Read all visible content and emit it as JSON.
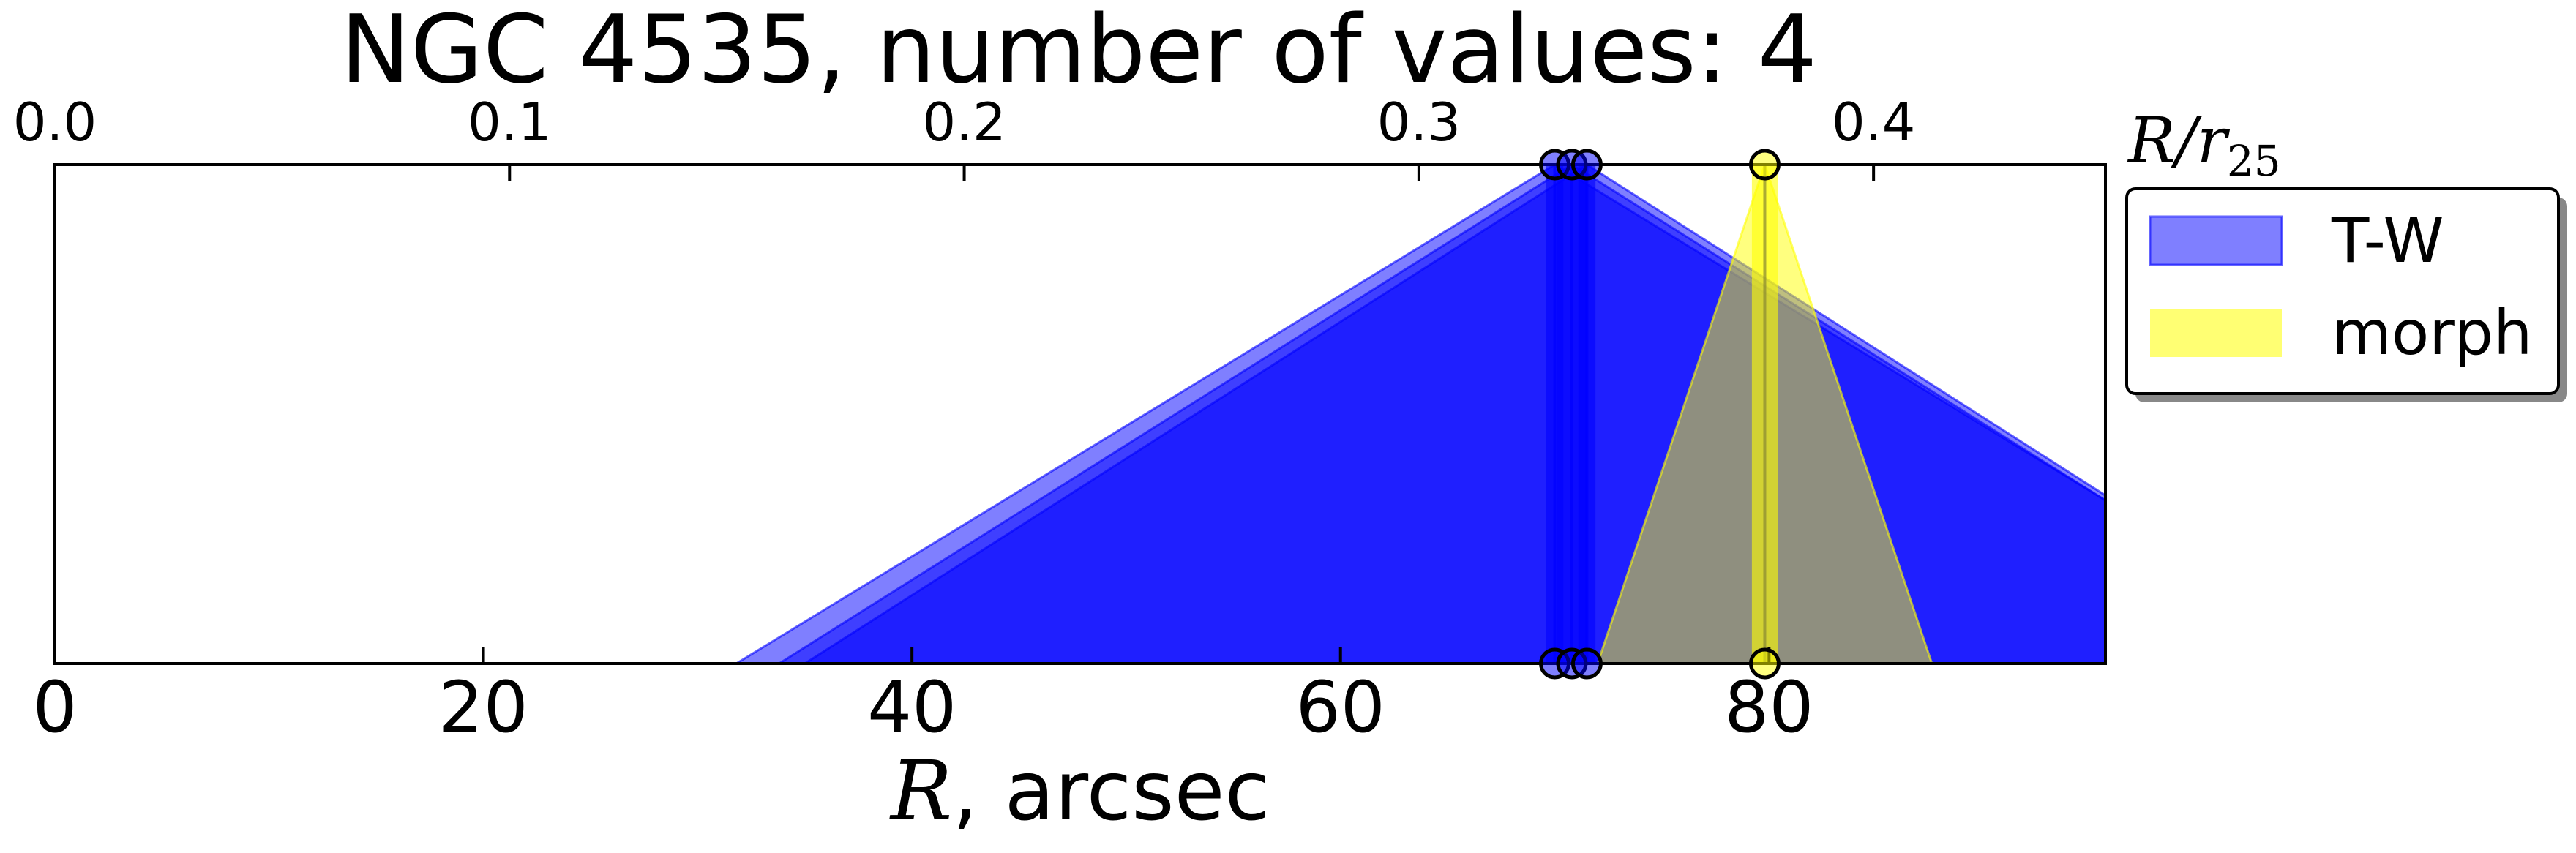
{
  "chart_data": {
    "type": "area",
    "title": "NGC 4535, number of values: 4",
    "xlabel_math": "R",
    "xlabel_rest": ", arcsec",
    "top_xlabel_main": "R/r",
    "top_xlabel_sub": "25",
    "xlim": [
      0,
      95.7
    ],
    "top_xlim": [
      0,
      0.451
    ],
    "bottom_ticks": [
      "0",
      "20",
      "40",
      "60",
      "80"
    ],
    "bottom_tick_values": [
      0,
      20,
      40,
      60,
      80
    ],
    "top_ticks": [
      "0.0",
      "0.1",
      "0.2",
      "0.3",
      "0.4"
    ],
    "top_tick_values": [
      0.0,
      0.1,
      0.2,
      0.3,
      0.4
    ],
    "series": [
      {
        "name": "T-W",
        "color": "#0000ff",
        "measurements": [
          {
            "r": 70.0,
            "err": 0.4,
            "left_base": 31.8
          },
          {
            "r": 70.8,
            "err": 0.7,
            "left_base": 33.8
          },
          {
            "r": 71.5,
            "err": 0.4,
            "left_base": 35.0
          }
        ]
      },
      {
        "name": "morph",
        "color": "#ffff00",
        "measurements": [
          {
            "r": 79.8,
            "err": 0.6,
            "left_base": 72.0,
            "right_base": 87.6
          }
        ]
      }
    ],
    "legend": {
      "position": "outside-right",
      "entries": [
        "T-W",
        "morph"
      ]
    }
  }
}
